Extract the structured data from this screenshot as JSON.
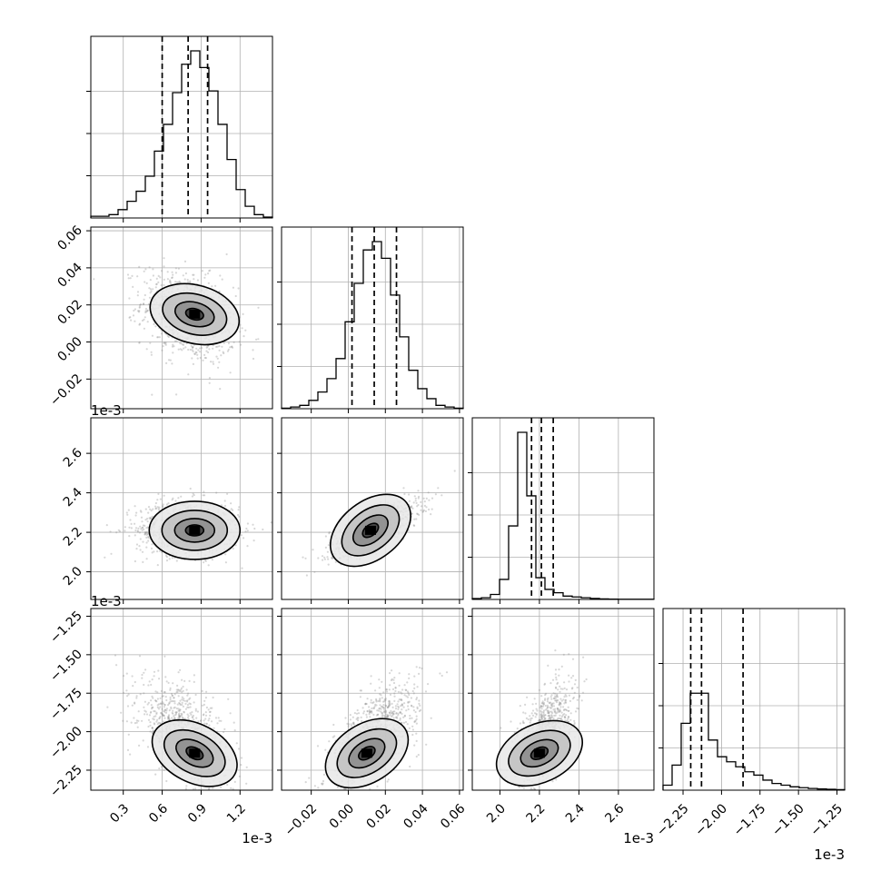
{
  "chart_data": {
    "type": "corner",
    "grid": true,
    "colors": {
      "line": "#000000",
      "grid": "#b0b0b0",
      "scatter": "#8c8c8c",
      "density": "#000000"
    },
    "parameters": [
      {
        "index": 0,
        "range": [
          0.05,
          1.45
        ],
        "ticks": [
          0.3,
          0.6,
          0.9,
          1.2
        ],
        "tick_labels": [
          "0.3",
          "0.6",
          "0.9",
          "1.2"
        ],
        "multiplier": "1e-3",
        "quantiles": [
          0.6,
          0.8,
          0.95
        ],
        "hist": [
          1,
          1,
          2,
          5,
          10,
          16,
          25,
          40,
          56,
          75,
          92,
          100,
          90,
          76,
          56,
          35,
          17,
          7,
          2,
          0.5
        ]
      },
      {
        "index": 1,
        "range": [
          -0.036,
          0.062
        ],
        "ticks": [
          -0.02,
          0.0,
          0.02,
          0.04,
          0.06
        ],
        "tick_labels": [
          "−0.02",
          "0.00",
          "0.02",
          "0.04",
          "0.06"
        ],
        "multiplier": "",
        "quantiles": [
          0.002,
          0.014,
          0.026
        ],
        "hist": [
          0.3,
          1,
          2,
          5,
          10,
          18,
          30,
          52,
          75,
          95,
          100,
          90,
          68,
          43,
          23,
          12,
          6,
          2,
          1,
          0.3
        ]
      },
      {
        "index": 2,
        "range": [
          1.86,
          2.78
        ],
        "ticks": [
          2.0,
          2.2,
          2.4,
          2.6
        ],
        "tick_labels": [
          "2.0",
          "2.2",
          "2.4",
          "2.6"
        ],
        "multiplier": "1e-3",
        "quantiles": [
          2.16,
          2.21,
          2.27
        ],
        "hist": [
          0.5,
          1,
          3,
          12,
          44,
          100,
          62,
          13,
          6,
          4,
          2,
          1.5,
          1,
          0.6,
          0.3,
          0.2,
          0.1,
          0.1,
          0.1,
          0.1
        ]
      },
      {
        "index": 3,
        "range": [
          -2.38,
          -1.2
        ],
        "ticks": [
          -2.25,
          -2.0,
          -1.75,
          -1.5,
          -1.25
        ],
        "tick_labels": [
          "−2.25",
          "−2.00",
          "−1.75",
          "−1.50",
          "−1.25"
        ],
        "multiplier": "1e-3",
        "quantiles": [
          -2.2,
          -2.13,
          -1.86
        ],
        "hist": [
          3,
          15,
          40,
          58,
          58,
          30,
          20,
          17,
          14,
          11,
          9,
          6,
          4,
          3,
          2,
          1.5,
          1,
          0.7,
          0.5,
          0.3
        ]
      }
    ],
    "pairs": [
      {
        "x_param": 0,
        "y_param": 1,
        "peak": [
          0.85,
          0.015
        ],
        "samples": {
          "mean": [
            0.8,
            0.014
          ],
          "sd": [
            0.18,
            0.012
          ],
          "rho": -0.3
        }
      },
      {
        "x_param": 0,
        "y_param": 2,
        "peak": [
          0.85,
          2.21
        ],
        "samples": {
          "mean": [
            0.8,
            2.22
          ],
          "sd": [
            0.2,
            0.07
          ],
          "rho": 0.0
        }
      },
      {
        "x_param": 1,
        "y_param": 2,
        "peak": [
          0.012,
          2.21
        ],
        "samples": {
          "mean": [
            0.014,
            2.22
          ],
          "sd": [
            0.012,
            0.07
          ],
          "rho": 0.75
        }
      },
      {
        "x_param": 0,
        "y_param": 3,
        "peak": [
          0.85,
          -2.14
        ],
        "samples": {
          "mean": [
            0.78,
            -2.02
          ],
          "sd": [
            0.18,
            0.17
          ],
          "rho": -0.55
        }
      },
      {
        "x_param": 1,
        "y_param": 3,
        "peak": [
          0.01,
          -2.14
        ],
        "samples": {
          "mean": [
            0.014,
            -2.02
          ],
          "sd": [
            0.012,
            0.17
          ],
          "rho": 0.65
        }
      },
      {
        "x_param": 2,
        "y_param": 3,
        "peak": [
          2.2,
          -2.14
        ],
        "samples": {
          "mean": [
            2.23,
            -2.02
          ],
          "sd": [
            0.07,
            0.17
          ],
          "rho": 0.5
        }
      }
    ]
  }
}
